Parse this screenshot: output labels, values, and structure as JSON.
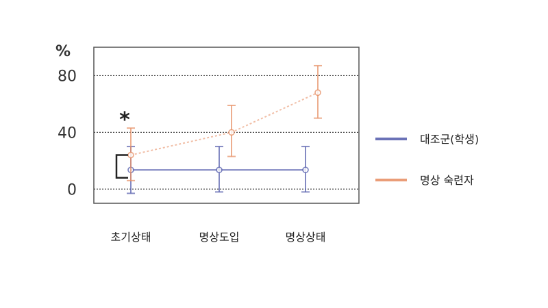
{
  "chart_data": {
    "type": "line",
    "title": "",
    "ylabel": "%",
    "xlabel": "",
    "categories": [
      "초기상태",
      "명상도입",
      "명상상태"
    ],
    "ylim": [
      -10,
      100
    ],
    "yticks": [
      0,
      40,
      80
    ],
    "grid": true,
    "legend_position": "right",
    "series": [
      {
        "name": "대조군(학생)",
        "color": "#5b63b0",
        "values": [
          13.5,
          13.5,
          13.5
        ],
        "error_low": [
          -3,
          -2,
          -2
        ],
        "error_high": [
          30,
          30,
          30
        ],
        "line_style": "solid"
      },
      {
        "name": "명상 숙련자",
        "color": "#e8936a",
        "values": [
          24,
          40,
          68
        ],
        "error_low": [
          6,
          23,
          50
        ],
        "error_high": [
          43,
          59,
          87
        ],
        "line_style": "dotted"
      }
    ],
    "annotations": [
      {
        "text": "*",
        "target": "초기상태",
        "meaning": "significance bracket between groups"
      }
    ]
  }
}
